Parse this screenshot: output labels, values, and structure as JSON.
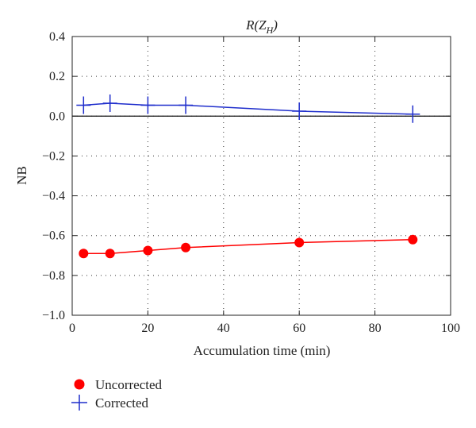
{
  "chart_data": {
    "type": "line",
    "title": {
      "main": "R(Z",
      "subscript": "H",
      "close": ")"
    },
    "xlabel": "Accumulation time (min)",
    "ylabel": "NB",
    "xlim": [
      0,
      100
    ],
    "ylim": [
      -1.0,
      0.4
    ],
    "xticks": [
      "0",
      "20",
      "40",
      "60",
      "80",
      "100"
    ],
    "yticks": [
      "0.4",
      "0.2",
      "0.0",
      "−0.2",
      "−0.4",
      "−0.6",
      "−0.8",
      "−1.0"
    ],
    "grid": true,
    "reference_line": 0,
    "legend_position": "bottom-left, below plot",
    "series": [
      {
        "name": "Uncorrected",
        "color": "#ff0000",
        "marker": "filled-circle",
        "x": [
          3,
          10,
          20,
          30,
          60,
          90
        ],
        "y": [
          -0.69,
          -0.69,
          -0.675,
          -0.66,
          -0.635,
          -0.62
        ]
      },
      {
        "name": "Corrected",
        "color": "#1f2ecc",
        "marker": "plus",
        "x": [
          3,
          10,
          20,
          30,
          60,
          90
        ],
        "y": [
          0.055,
          0.065,
          0.055,
          0.055,
          0.025,
          0.01
        ]
      }
    ]
  }
}
